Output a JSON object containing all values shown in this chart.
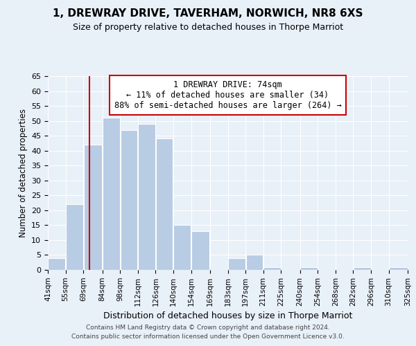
{
  "title": "1, DREWRAY DRIVE, TAVERHAM, NORWICH, NR8 6XS",
  "subtitle": "Size of property relative to detached houses in Thorpe Marriot",
  "xlabel": "Distribution of detached houses by size in Thorpe Marriot",
  "ylabel": "Number of detached properties",
  "bar_left_edges": [
    41,
    55,
    69,
    84,
    98,
    112,
    126,
    140,
    154,
    169,
    183,
    197,
    211,
    225,
    240,
    254,
    268,
    282,
    296,
    310
  ],
  "bar_widths": [
    14,
    14,
    15,
    14,
    14,
    14,
    14,
    14,
    15,
    14,
    14,
    14,
    14,
    15,
    14,
    14,
    14,
    14,
    14,
    15
  ],
  "bar_heights": [
    4,
    22,
    42,
    51,
    47,
    49,
    44,
    15,
    13,
    0,
    4,
    5,
    1,
    0,
    1,
    0,
    0,
    1,
    0,
    1
  ],
  "bar_color": "#b8cce4",
  "bar_edge_color": "#ffffff",
  "reference_line_x": 74,
  "reference_line_color": "#cc0000",
  "tick_labels": [
    "41sqm",
    "55sqm",
    "69sqm",
    "84sqm",
    "98sqm",
    "112sqm",
    "126sqm",
    "140sqm",
    "154sqm",
    "169sqm",
    "183sqm",
    "197sqm",
    "211sqm",
    "225sqm",
    "240sqm",
    "254sqm",
    "268sqm",
    "282sqm",
    "296sqm",
    "310sqm",
    "325sqm"
  ],
  "ylim": [
    0,
    65
  ],
  "yticks": [
    0,
    5,
    10,
    15,
    20,
    25,
    30,
    35,
    40,
    45,
    50,
    55,
    60,
    65
  ],
  "annotation_line1": "1 DREWRAY DRIVE: 74sqm",
  "annotation_line2": "← 11% of detached houses are smaller (34)",
  "annotation_line3": "88% of semi-detached houses are larger (264) →",
  "annotation_box_color": "#ffffff",
  "annotation_box_edge_color": "#cc0000",
  "background_color": "#e8f0f8",
  "plot_bg_color": "#e8f0f8",
  "footer_line1": "Contains HM Land Registry data © Crown copyright and database right 2024.",
  "footer_line2": "Contains public sector information licensed under the Open Government Licence v3.0."
}
